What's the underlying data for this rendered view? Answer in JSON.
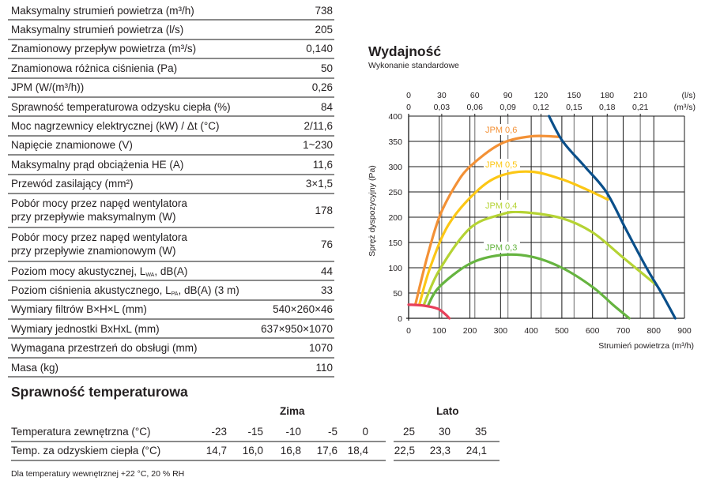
{
  "specs": [
    {
      "label": "Maksymalny strumień powietrza (m³/h)",
      "value": "738"
    },
    {
      "label": "Maksymalny strumień powietrza (l/s)",
      "value": "205"
    },
    {
      "label": "Znamionowy przepływ powietrza (m³/s)",
      "value": "0,140"
    },
    {
      "label": "Znamionowa różnica ciśnienia (Pa)",
      "value": "50"
    },
    {
      "label": "JPM (W/(m³/h))",
      "value": "0,26"
    },
    {
      "label": "Sprawność temperaturowa odzysku ciepła (%)",
      "value": "84"
    },
    {
      "label": "Moc nagrzewnicy elektrycznej (kW) / Δt (°C)",
      "value": "2/11,6"
    },
    {
      "label": "Napięcie znamionowe (V)",
      "value": "1~230"
    },
    {
      "label": "Maksymalny prąd obciążenia HE (A)",
      "value": "11,6"
    },
    {
      "label": "Przewód zasilający (mm²)",
      "value": "3×1,5"
    },
    {
      "label": "Pobór mocy przez napęd wentylatora",
      "label2": "przy przepływie maksymalnym (W)",
      "value": "178"
    },
    {
      "label": "Pobór mocy przez napęd wentylatora",
      "label2": "przy przepływie znamionowym (W)",
      "value": "76"
    },
    {
      "label": "Poziom mocy akustycznej, L",
      "sub": "WA",
      "label2": ", dB(A)",
      "value": "44"
    },
    {
      "label": "Poziom ciśnienia akustycznego, L",
      "sub": "PA",
      "label2": ", dB(A) (3 m)",
      "value": "33"
    },
    {
      "label": "Wymiary filtrów B×H×L (mm)",
      "value": "540×260×46"
    },
    {
      "label": "Wymiary jednostki BxHxL (mm)",
      "value": "637×950×1070"
    },
    {
      "label": "Wymagana przestrzeń do obsługi (mm)",
      "value": "1070"
    },
    {
      "label": "Masa (kg)",
      "value": "110"
    }
  ],
  "efficiency": {
    "title": "Sprawność temperaturowa",
    "group_winter": "Zima",
    "group_summer": "Lato",
    "row1_label": "Temperatura zewnętrzna (°C)",
    "row1": [
      "-23",
      "-15",
      "-10",
      "-5",
      "0",
      "25",
      "30",
      "35"
    ],
    "row2_label": "Temp. za odzyskiem ciepła (°C)",
    "row2": [
      "14,7",
      "16,0",
      "16,8",
      "17,6",
      "18,4",
      "22,5",
      "23,3",
      "24,1"
    ],
    "note": "Dla temperatury wewnętrznej +22 °C, 20 % RH"
  },
  "chart_data": {
    "type": "line",
    "title": "Wydajność",
    "subtitle": "Wykonanie standardowe",
    "xlabel": "Strumień powietrza (m³/h)",
    "ylabel": "Spręż dyspozycyjny (Pa)",
    "xlim": [
      0,
      900
    ],
    "ylim": [
      0,
      400
    ],
    "grid": true,
    "x_ticks": [
      "0",
      "100",
      "200",
      "300",
      "400",
      "500",
      "600",
      "700",
      "800",
      "900"
    ],
    "y_ticks": [
      "0",
      "50",
      "100",
      "150",
      "200",
      "250",
      "300",
      "350",
      "400"
    ],
    "top_axis": {
      "unit1": "(l/s)",
      "unit2": "(m³/s)",
      "ticks_ls": [
        "0",
        "30",
        "60",
        "90",
        "120",
        "150",
        "180",
        "210"
      ],
      "ticks_m3s": [
        "0",
        "0,03",
        "0,06",
        "0,09",
        "0,12",
        "0,15",
        "0,18",
        "0,21"
      ],
      "values_ls": [
        0,
        30,
        60,
        90,
        120,
        150,
        180,
        210
      ]
    },
    "series": [
      {
        "name": "JPM 0,6",
        "color": "#f39136",
        "points": [
          [
            22,
            27
          ],
          [
            60,
            120
          ],
          [
            100,
            200
          ],
          [
            150,
            260
          ],
          [
            200,
            300
          ],
          [
            300,
            345
          ],
          [
            400,
            360
          ],
          [
            490,
            359
          ]
        ]
      },
      {
        "name": "JPM 0,5",
        "color": "#fcc715",
        "points": [
          [
            35,
            27
          ],
          [
            70,
            100
          ],
          [
            130,
            185
          ],
          [
            220,
            250
          ],
          [
            300,
            282
          ],
          [
            400,
            290
          ],
          [
            500,
            275
          ],
          [
            580,
            255
          ],
          [
            650,
            235
          ]
        ]
      },
      {
        "name": "JPM 0,4",
        "color": "#b5d334",
        "points": [
          [
            50,
            27
          ],
          [
            100,
            95
          ],
          [
            200,
            178
          ],
          [
            300,
            205
          ],
          [
            370,
            210
          ],
          [
            500,
            198
          ],
          [
            600,
            170
          ],
          [
            700,
            120
          ],
          [
            810,
            65
          ]
        ]
      },
      {
        "name": "JPM 0,3",
        "color": "#66b440",
        "points": [
          [
            63,
            25
          ],
          [
            100,
            62
          ],
          [
            200,
            108
          ],
          [
            300,
            125
          ],
          [
            400,
            122
          ],
          [
            500,
            100
          ],
          [
            600,
            62
          ],
          [
            670,
            25
          ],
          [
            720,
            0
          ]
        ]
      },
      {
        "color": "#0a4f8a",
        "points": [
          [
            458,
            400
          ],
          [
            503,
            350
          ],
          [
            575,
            300
          ],
          [
            645,
            250
          ],
          [
            710,
            175
          ],
          [
            776,
            100
          ],
          [
            825,
            50
          ],
          [
            870,
            0
          ]
        ]
      },
      {
        "color": "#e8405a",
        "points": [
          [
            0,
            27
          ],
          [
            50,
            25
          ],
          [
            95,
            19
          ],
          [
            118,
            9
          ],
          [
            133,
            0
          ]
        ]
      }
    ]
  }
}
